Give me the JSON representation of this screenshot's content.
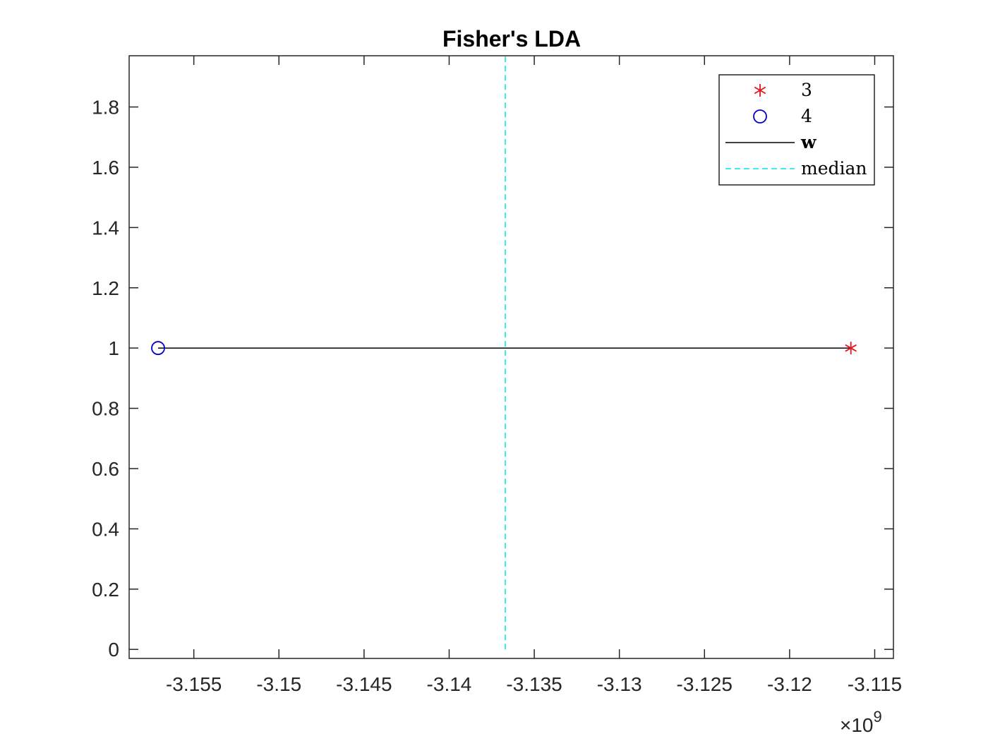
{
  "chart_data": {
    "type": "scatter",
    "title": "Fisher's LDA",
    "xlabel": "",
    "ylabel": "",
    "x_exponent_label": "×10",
    "x_exponent_power": "9",
    "x_scale": 1000000000,
    "xlim": [
      -3.1588,
      -3.1139
    ],
    "ylim": [
      -0.03,
      1.97
    ],
    "xticks": [
      -3.155,
      -3.15,
      -3.145,
      -3.14,
      -3.135,
      -3.13,
      -3.125,
      -3.12,
      -3.115
    ],
    "xtick_labels": [
      "-3.155",
      "-3.15",
      "-3.145",
      "-3.14",
      "-3.135",
      "-3.13",
      "-3.125",
      "-3.12",
      "-3.115"
    ],
    "yticks": [
      0,
      0.2,
      0.4,
      0.6,
      0.8,
      1,
      1.2,
      1.4,
      1.6,
      1.8
    ],
    "ytick_labels": [
      "0",
      "0.2",
      "0.4",
      "0.6",
      "0.8",
      "1",
      "1.2",
      "1.4",
      "1.6",
      "1.8"
    ],
    "grid": false,
    "legend_position": "top-right",
    "series": [
      {
        "name": "3",
        "kind": "marker",
        "marker": "asterisk",
        "color": "#e8141f",
        "points": [
          [
            -3.1164,
            1
          ]
        ]
      },
      {
        "name": "4",
        "kind": "marker",
        "marker": "circle",
        "color": "#0000cc",
        "points": [
          [
            -3.1571,
            1
          ]
        ]
      },
      {
        "name": "w",
        "kind": "line",
        "style": "solid",
        "color": "#000000",
        "points": [
          [
            -3.1571,
            1
          ],
          [
            -3.1164,
            1
          ]
        ]
      },
      {
        "name": "median",
        "kind": "line",
        "style": "dashed",
        "color": "#00e5e5",
        "points": [
          [
            -3.1367,
            0
          ],
          [
            -3.1367,
            1.97
          ]
        ]
      }
    ]
  }
}
